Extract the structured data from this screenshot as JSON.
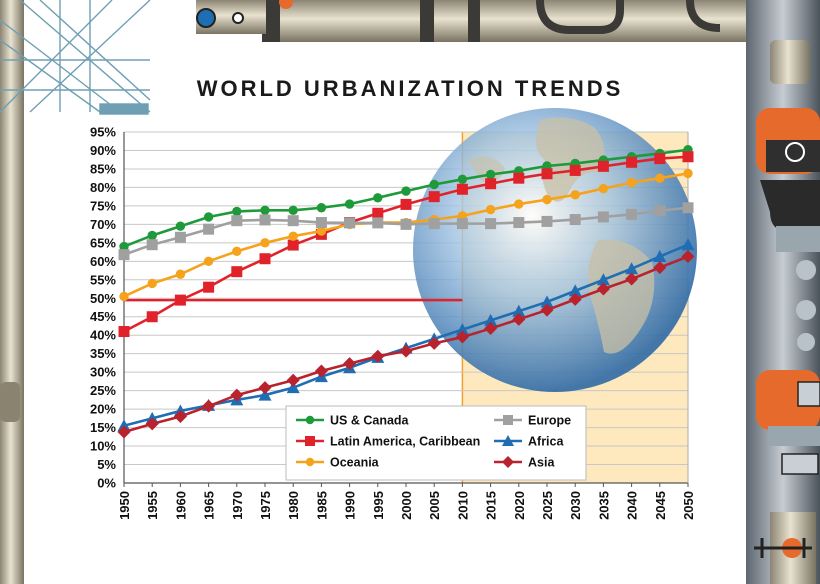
{
  "chart_data": {
    "type": "line",
    "title": "WORLD URBANIZATION TRENDS",
    "xlabel": "",
    "ylabel": "",
    "x": [
      1950,
      1955,
      1960,
      1965,
      1970,
      1975,
      1980,
      1985,
      1990,
      1995,
      2000,
      2005,
      2010,
      2015,
      2020,
      2025,
      2030,
      2035,
      2040,
      2045,
      2050
    ],
    "y_ticks": [
      "0%",
      "5%",
      "10%",
      "15%",
      "20%",
      "25%",
      "30%",
      "35%",
      "40%",
      "45%",
      "50%",
      "55%",
      "60%",
      "65%",
      "70%",
      "75%",
      "80%",
      "85%",
      "90%",
      "95%"
    ],
    "ylim": [
      0,
      95
    ],
    "grid": true,
    "reference_line": {
      "y": 49.5,
      "x_from": 1950,
      "x_to": 2010,
      "color": "#e0232b"
    },
    "projection_region": {
      "x_from": 2010,
      "x_to": 2050,
      "color": "#fde9bd",
      "border": "#f0a030"
    },
    "legend_position": "bottom-center",
    "series": [
      {
        "name": "US & Canada",
        "color": "#1f9a3a",
        "marker": "circle",
        "values": [
          64,
          67,
          69.5,
          72,
          73.5,
          73.8,
          73.8,
          74.5,
          75.5,
          77.2,
          79,
          80.8,
          82.2,
          83.5,
          84.5,
          85.8,
          86.5,
          87.4,
          88.3,
          89.2,
          90.2
        ]
      },
      {
        "name": "Latin America, Caribbean",
        "color": "#e0232b",
        "marker": "square",
        "values": [
          41,
          45,
          49.5,
          53,
          57.2,
          60.7,
          64.4,
          67.3,
          70.5,
          73,
          75.4,
          77.5,
          79.5,
          81,
          82.5,
          83.7,
          84.6,
          85.7,
          86.8,
          87.8,
          88.3
        ]
      },
      {
        "name": "Oceania",
        "color": "#f5a21c",
        "marker": "circle",
        "values": [
          50.5,
          54,
          56.5,
          60,
          62.7,
          65,
          66.8,
          68.2,
          70,
          70.5,
          70.5,
          71.3,
          72.3,
          74,
          75.5,
          76.7,
          78,
          79.7,
          81.3,
          82.5,
          83.8
        ]
      },
      {
        "name": "Europe",
        "color": "#a0a0a0",
        "marker": "square",
        "values": [
          61.8,
          64.5,
          66.5,
          68.7,
          71,
          71.2,
          71,
          70.5,
          70.4,
          70.4,
          70,
          70.2,
          70.2,
          70.2,
          70.5,
          70.8,
          71.3,
          72,
          72.7,
          73.7,
          74.5
        ]
      },
      {
        "name": "Africa",
        "color": "#1f6db3",
        "marker": "triangle",
        "values": [
          15.5,
          17.5,
          19.5,
          21,
          22.5,
          23.8,
          25.8,
          28.8,
          31.2,
          34,
          36.5,
          39,
          41.5,
          44,
          46.5,
          49,
          52,
          55,
          58,
          61.3,
          64.5
        ]
      },
      {
        "name": "Asia",
        "color": "#b8232e",
        "marker": "diamond",
        "values": [
          13.8,
          16,
          18,
          20.8,
          23.8,
          25.8,
          27.8,
          30.3,
          32.3,
          34.3,
          35.7,
          37.8,
          39.5,
          41.8,
          44.3,
          46.8,
          49.7,
          52.5,
          55.2,
          58.3,
          61.3
        ]
      }
    ]
  }
}
